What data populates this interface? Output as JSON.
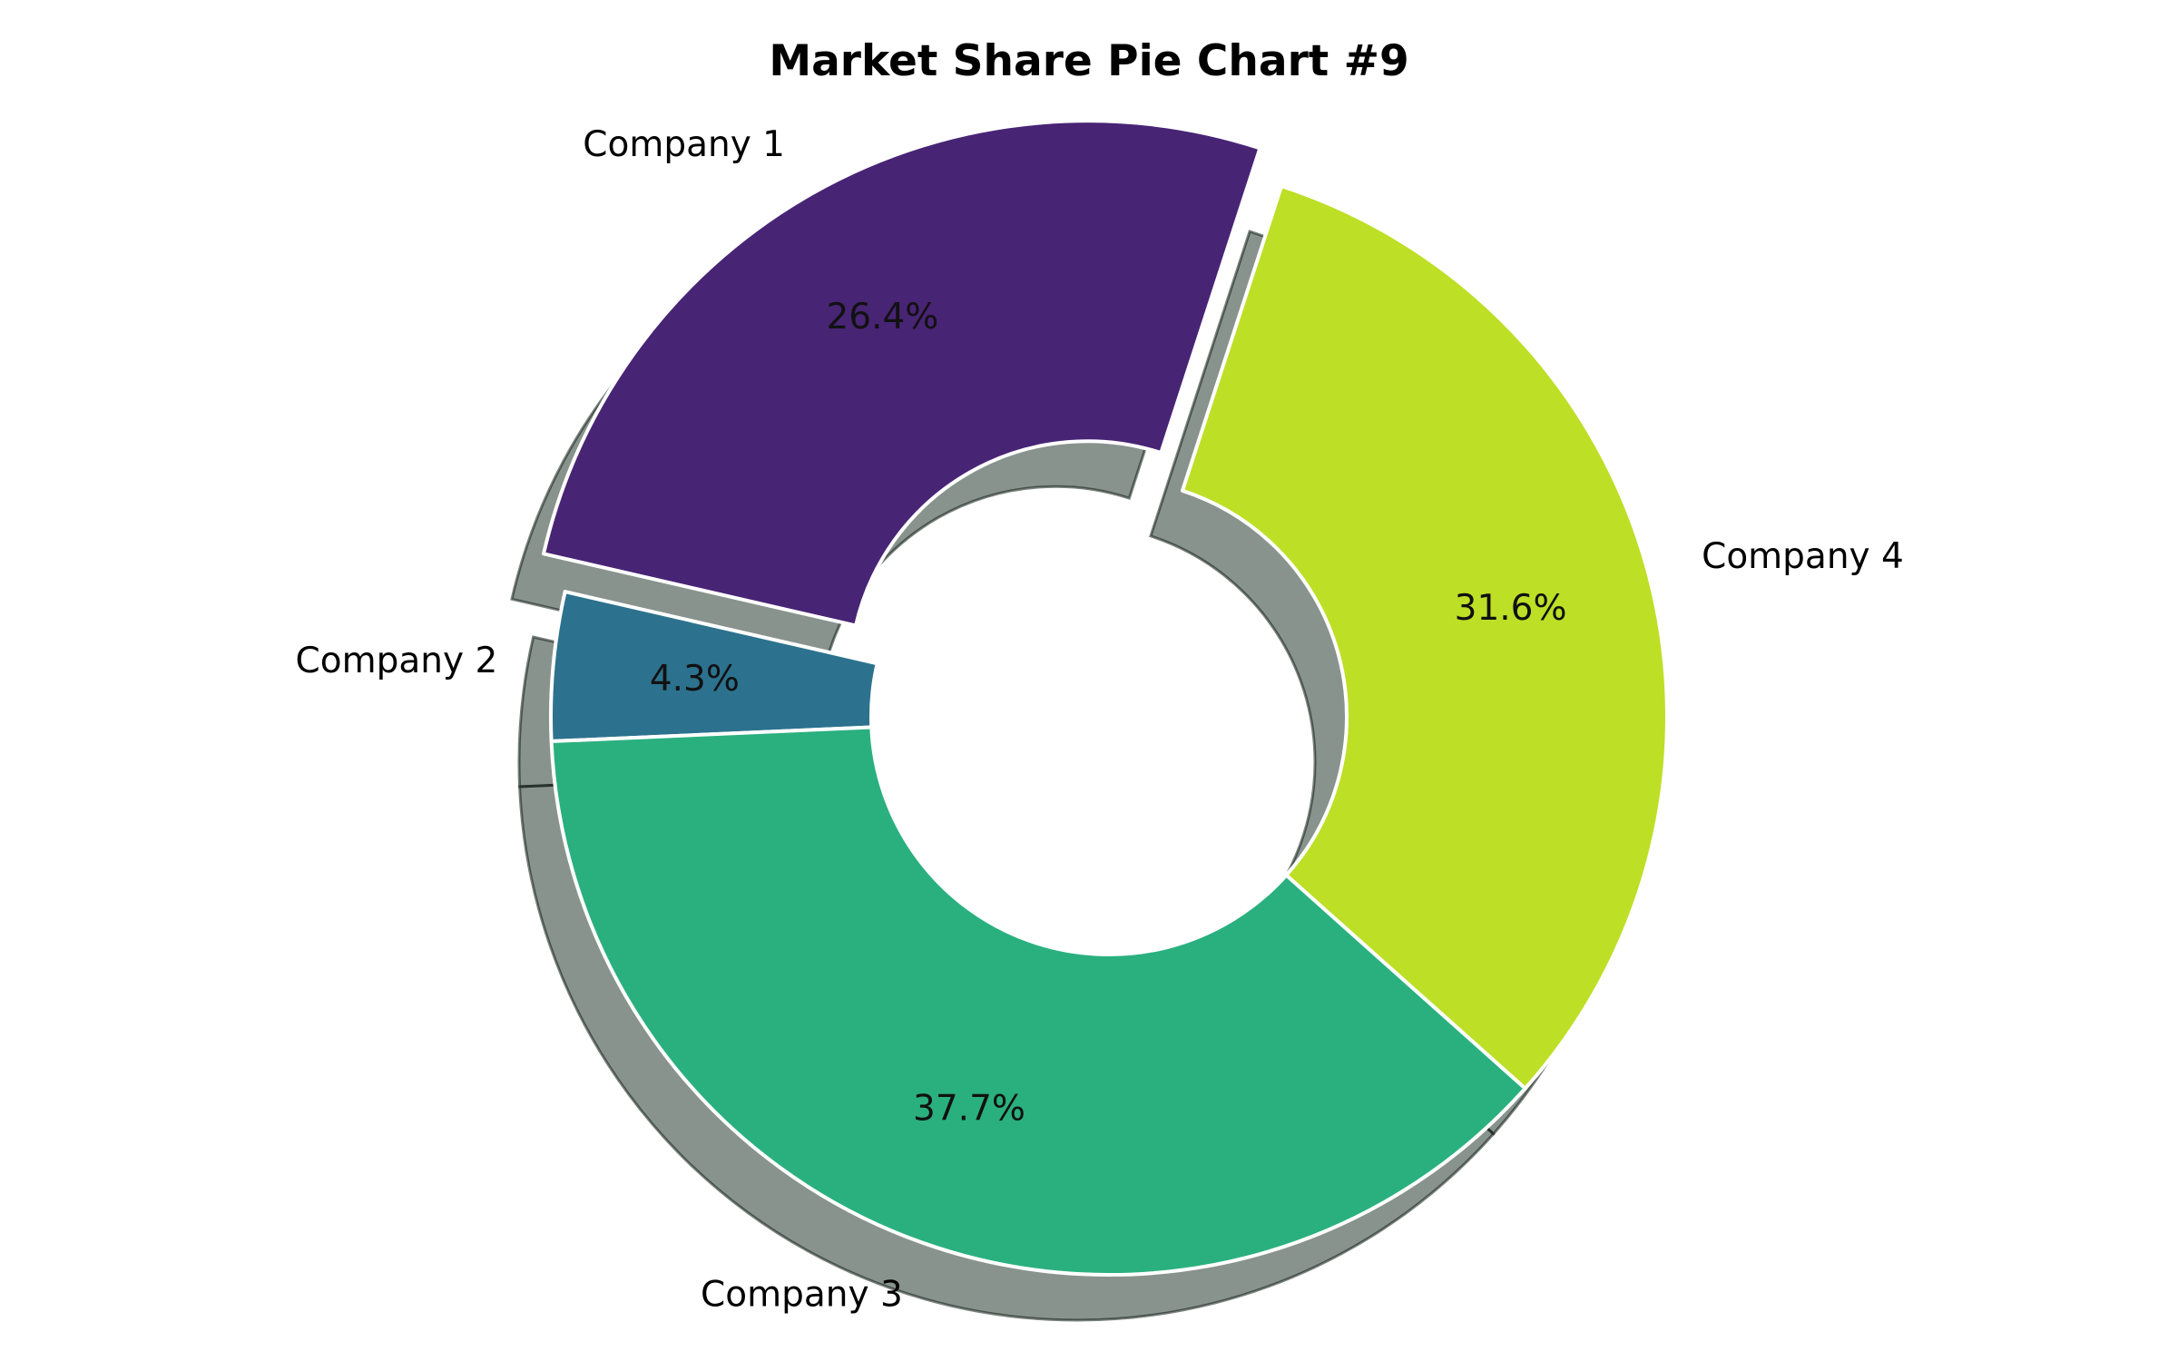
{
  "chart_data": {
    "type": "pie",
    "variant": "donut",
    "title": "Market Share Pie Chart #9",
    "categories": [
      "Company 1",
      "Company 2",
      "Company 3",
      "Company 4"
    ],
    "values": [
      26.4,
      4.3,
      37.7,
      31.6
    ],
    "value_labels": [
      "26.4%",
      "4.3%",
      "37.7%",
      "31.6%"
    ],
    "colors": [
      "#482475",
      "#2c728e",
      "#2ab07f",
      "#bddf26"
    ],
    "exploded": [
      "Company 1"
    ],
    "shadow": true,
    "start_angle_deg": 72,
    "direction": "counterclockwise",
    "legend": "none"
  }
}
